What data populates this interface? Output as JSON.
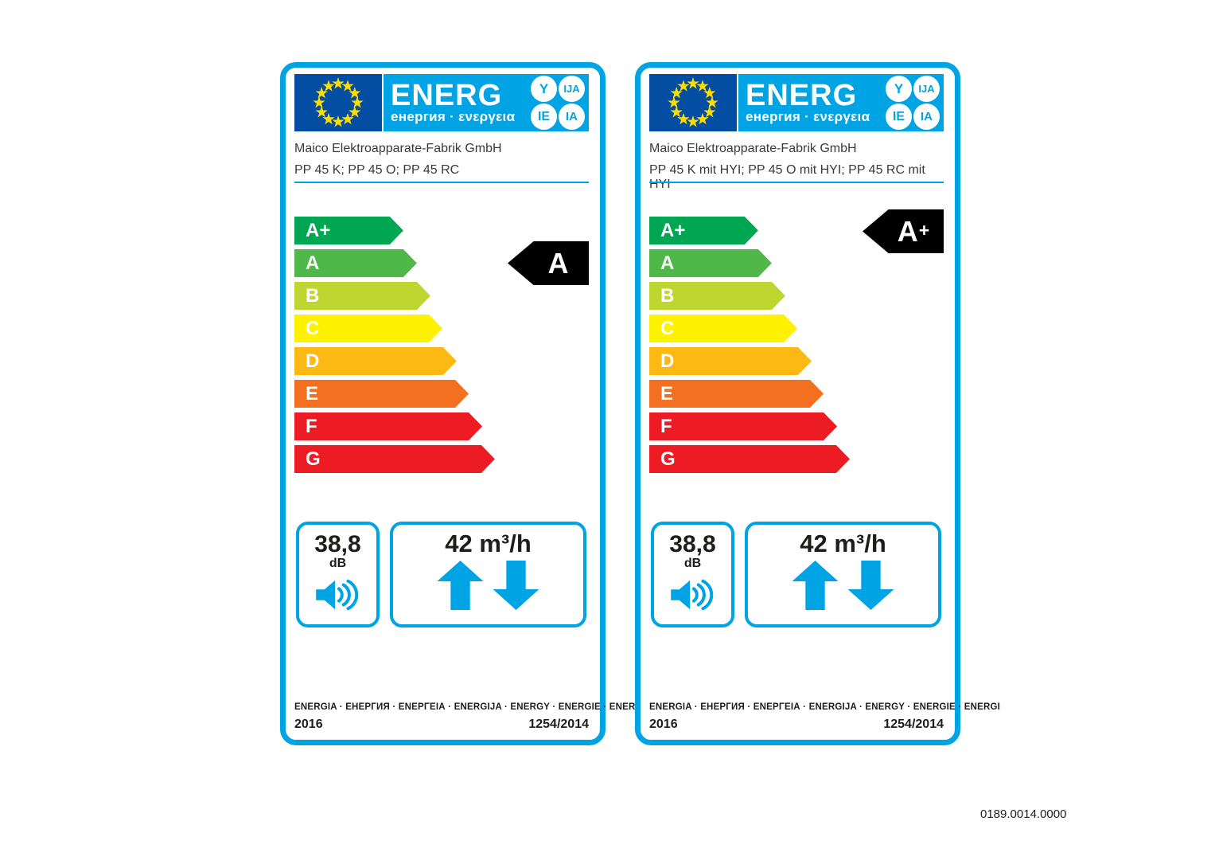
{
  "colors": {
    "accent": "#00a3e3",
    "flag_blue": "#034ea2",
    "star_yellow": "#ffdd00",
    "arrow_black": "#000000",
    "text_dark": "#3a3a39",
    "text_black": "#1d1d1b"
  },
  "logo": {
    "title": "ENERG",
    "subtitle": "енергия · ενεργεια",
    "circles": [
      "Y",
      "IJA",
      "IE",
      "IA"
    ]
  },
  "classes": [
    {
      "label": "A+",
      "color": "#00a651",
      "width": "37%"
    },
    {
      "label": "A",
      "color": "#50b848",
      "width": "41.6%"
    },
    {
      "label": "B",
      "color": "#bed630",
      "width": "46.2%"
    },
    {
      "label": "C",
      "color": "#fff200",
      "width": "50.3%"
    },
    {
      "label": "D",
      "color": "#fdb913",
      "width": "55.1%"
    },
    {
      "label": "E",
      "color": "#f37021",
      "width": "59.2%"
    },
    {
      "label": "F",
      "color": "#ed1c24",
      "width": "63.8%"
    },
    {
      "label": "G",
      "color": "#ed1c24",
      "width": "68.1%"
    }
  ],
  "shared": {
    "footer_words": "ENERGIA · ЕНЕРГИЯ · ΕΝΕΡΓΕΙΑ · ENERGIJA · ENERGY · ENERGIE · ENERGI",
    "year": "2016",
    "regulation": "1254/2014"
  },
  "labels": [
    {
      "supplier": "Maico Elektroapparate-Fabrik GmbH",
      "model": "PP 45 K; PP 45 O; PP 45 RC",
      "rating": "A",
      "rating_suffix": "",
      "noise_value": "38,8",
      "noise_unit": "dB",
      "airflow": "42 m³/h"
    },
    {
      "supplier": "Maico Elektroapparate-Fabrik GmbH",
      "model": "PP 45 K mit HYI; PP 45 O mit HYI; PP 45 RC mit HYI",
      "rating": "A",
      "rating_suffix": "+",
      "noise_value": "38,8",
      "noise_unit": "dB",
      "airflow": "42 m³/h"
    }
  ],
  "page": {
    "code": "0189.0014.0000"
  }
}
